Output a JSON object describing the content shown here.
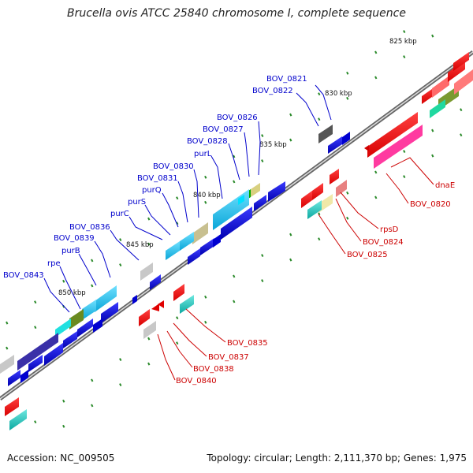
{
  "title": "Brucella ovis ATCC 25840 chromosome I, complete sequence",
  "footer": {
    "accession": "Accession: NC_009505",
    "summary": "Topology: circular; Length: 2,111,370 bp; Genes: 1,975"
  },
  "scale_ticks": [
    "825 kbp",
    "830 kbp",
    "835 kbp",
    "840 kbp",
    "845 kbp",
    "850 kbp"
  ],
  "genes_plus_strand": [
    "BOV_0821",
    "BOV_0822",
    "BOV_0826",
    "BOV_0827",
    "BOV_0828",
    "purL",
    "BOV_0830",
    "BOV_0831",
    "purQ",
    "purS",
    "purC",
    "BOV_0836",
    "BOV_0839",
    "purB",
    "rpe",
    "BOV_0843"
  ],
  "genes_minus_strand": [
    "dnaE",
    "BOV_0820",
    "rpsD",
    "BOV_0824",
    "BOV_0825",
    "BOV_0835",
    "BOV_0837",
    "BOV_0838",
    "BOV_0840"
  ],
  "colors": {
    "plus_label": "#0000cc",
    "minus_label": "#cc0000",
    "backbone": "#888888",
    "tick_dot": "#2a8a2a"
  }
}
